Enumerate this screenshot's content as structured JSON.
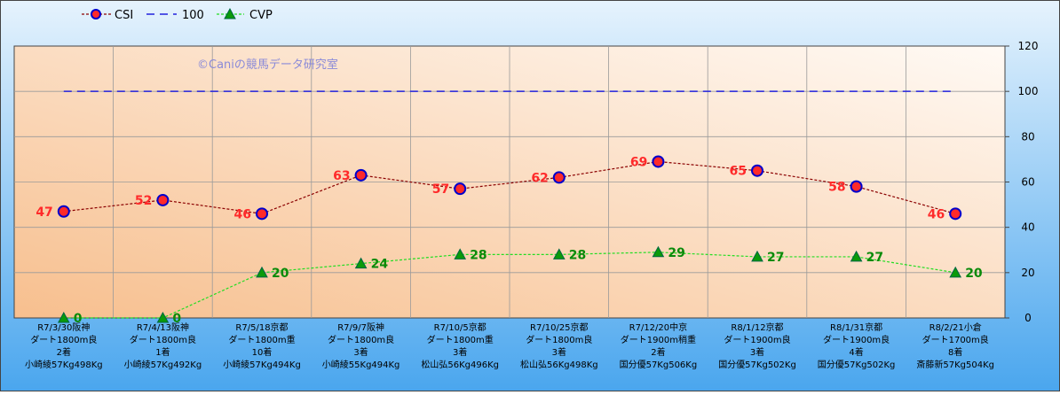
{
  "chart_data": {
    "type": "line",
    "categories": [
      [
        "R7/3/30阪神",
        "ダート1800m良",
        "2着",
        "小崎綾57Kg498Kg"
      ],
      [
        "R7/4/13阪神",
        "ダート1800m良",
        "1着",
        "小崎綾57Kg492Kg"
      ],
      [
        "R7/5/18京都",
        "ダート1800m重",
        "10着",
        "小崎綾57Kg494Kg"
      ],
      [
        "R7/9/7阪神",
        "ダート1800m良",
        "3着",
        "小崎綾55Kg494Kg"
      ],
      [
        "R7/10/5京都",
        "ダート1800m重",
        "3着",
        "松山弘56Kg496Kg"
      ],
      [
        "R7/10/25京都",
        "ダート1800m良",
        "3着",
        "松山弘56Kg498Kg"
      ],
      [
        "R7/12/20中京",
        "ダート1900m稍重",
        "2着",
        "国分優57Kg506Kg"
      ],
      [
        "R8/1/12京都",
        "ダート1900m良",
        "3着",
        "国分優57Kg502Kg"
      ],
      [
        "R8/1/31京都",
        "ダート1900m良",
        "4着",
        "国分優57Kg502Kg"
      ],
      [
        "R8/2/21小倉",
        "ダート1700m良",
        "8着",
        "斎藤新57Kg504Kg"
      ]
    ],
    "series": [
      {
        "name": "CSI",
        "values": [
          47,
          52,
          46,
          63,
          57,
          62,
          69,
          65,
          58,
          46
        ],
        "color": "#8b0000",
        "marker_fill": "#ff2a2a",
        "marker_edge": "#0000cc",
        "label_color": "#ff2a2a"
      },
      {
        "name": "100",
        "values": [
          100,
          100,
          100,
          100,
          100,
          100,
          100,
          100,
          100,
          100
        ],
        "color": "#2222dd"
      },
      {
        "name": "CVP",
        "values": [
          0,
          0,
          20,
          24,
          28,
          28,
          29,
          27,
          27,
          20
        ],
        "color": "#22dd22",
        "marker_fill": "#0a9a0a",
        "label_color": "#0a8a0a"
      }
    ],
    "y_ticks": [
      "0",
      "20",
      "40",
      "60",
      "80",
      "100",
      "120"
    ],
    "ylim": [
      0,
      120
    ],
    "grid": true,
    "legend_position": "top-left",
    "watermark": "©Caniの競馬データ研究室",
    "colors": {
      "outer_bg_top": "#e6f3fd",
      "outer_bg_bottom": "#4aa6ee",
      "plot_bg_top_right": "#fffaf5",
      "plot_bg_bottom_left": "#f7bf8e"
    }
  }
}
